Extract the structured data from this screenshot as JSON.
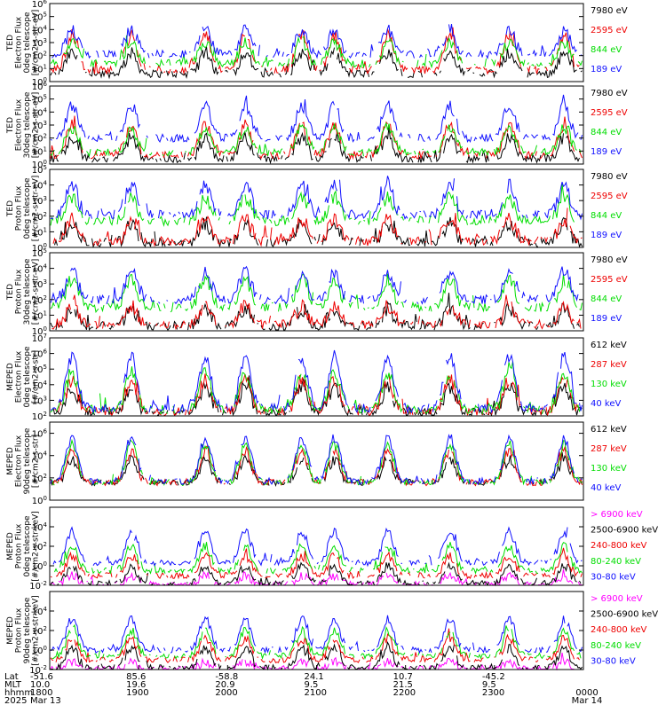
{
  "colors": {
    "blue": "#1010ff",
    "red": "#ee0000",
    "green": "#00dd00",
    "black": "#000000",
    "magenta": "#ff00ff"
  },
  "chart_data": {
    "type": "line",
    "x_axis": {
      "range_hhmm": [
        1800,
        2400
      ],
      "rows": [
        {
          "label": "Lat",
          "values": [
            "-51.6",
            "85.6",
            "-58.8",
            "24.1",
            "10.7",
            "-45.2",
            ""
          ]
        },
        {
          "label": "MLT",
          "values": [
            "10.0",
            "19.6",
            "20.9",
            "9.5",
            "21.5",
            "9.5",
            ""
          ]
        },
        {
          "label": "hhmm",
          "values": [
            "1800",
            "1900",
            "2000",
            "2100",
            "2200",
            "2300",
            "0000"
          ]
        },
        {
          "label": "2025",
          "values": [
            "Mar 13",
            "",
            "",
            "",
            "",
            "",
            "Mar 14"
          ]
        }
      ]
    },
    "panels": [
      {
        "ylabel": [
          "TED",
          "Electron Flux",
          "0deg telescope",
          "[#/cm2-s-str-eV]"
        ],
        "ylim_exp": [
          0,
          6
        ],
        "ticks": [
          "10^0",
          "10^1",
          "10^2",
          "10^3",
          "10^4",
          "10^5",
          "10^6"
        ],
        "series": [
          {
            "name": "7980 eV",
            "color": "black",
            "base": 0.6,
            "peak": 2.2
          },
          {
            "name": "2595 eV",
            "color": "red",
            "base": 0.9,
            "peak": 3.6
          },
          {
            "name": "844 eV",
            "color": "green",
            "base": 1.4,
            "peak": 3.0
          },
          {
            "name": "189 eV",
            "color": "blue",
            "base": 2.1,
            "peak": 4.0
          }
        ]
      },
      {
        "ylabel": [
          "TED",
          "Electron Flux",
          "30deg telescope",
          "[#/cm2-s-str-eV]"
        ],
        "ylim_exp": [
          0,
          6
        ],
        "ticks": [
          "10^0",
          "10^1",
          "10^2",
          "10^3",
          "10^4",
          "10^5",
          "10^6"
        ],
        "series": [
          {
            "name": "7980 eV",
            "color": "black",
            "base": 0.4,
            "peak": 2.0
          },
          {
            "name": "2595 eV",
            "color": "red",
            "base": 0.7,
            "peak": 3.0
          },
          {
            "name": "844 eV",
            "color": "green",
            "base": 0.9,
            "peak": 2.8
          },
          {
            "name": "189 eV",
            "color": "blue",
            "base": 2.0,
            "peak": 4.5
          }
        ]
      },
      {
        "ylabel": [
          "TED",
          "Proton Flux",
          "0deg telescope",
          "[#/cm2-s-str-eV]"
        ],
        "ylim_exp": [
          0,
          5
        ],
        "ticks": [
          "10^0",
          "10^1",
          "10^2",
          "10^3",
          "10^4",
          "10^5"
        ],
        "series": [
          {
            "name": "7980 eV",
            "color": "black",
            "base": 0.3,
            "peak": 1.5
          },
          {
            "name": "2595 eV",
            "color": "red",
            "base": 0.4,
            "peak": 1.8
          },
          {
            "name": "844 eV",
            "color": "green",
            "base": 1.7,
            "peak": 3.2
          },
          {
            "name": "189 eV",
            "color": "blue",
            "base": 2.1,
            "peak": 4.0
          }
        ]
      },
      {
        "ylabel": [
          "TED",
          "Proton Flux",
          "30deg telescope",
          "[#/cm2-s-str-eV]"
        ],
        "ylim_exp": [
          0,
          5
        ],
        "ticks": [
          "10^0",
          "10^1",
          "10^2",
          "10^3",
          "10^4",
          "10^5"
        ],
        "series": [
          {
            "name": "7980 eV",
            "color": "black",
            "base": 0.3,
            "peak": 1.4
          },
          {
            "name": "2595 eV",
            "color": "red",
            "base": 0.4,
            "peak": 1.6
          },
          {
            "name": "844 eV",
            "color": "green",
            "base": 1.5,
            "peak": 3.3
          },
          {
            "name": "189 eV",
            "color": "blue",
            "base": 2.0,
            "peak": 3.8
          }
        ]
      },
      {
        "ylabel": [
          "MEPED",
          "Electron Flux",
          "0deg telescope",
          "[#/cm2-s-str]"
        ],
        "ylim_exp": [
          2,
          7
        ],
        "ticks": [
          "10^2",
          "10^3",
          "10^4",
          "10^5",
          "10^6",
          "10^7"
        ],
        "series": [
          {
            "name": "612 keV",
            "color": "black",
            "base": 2.2,
            "peak": 3.8
          },
          {
            "name": "287 keV",
            "color": "red",
            "base": 2.3,
            "peak": 4.3
          },
          {
            "name": "130 keV",
            "color": "green",
            "base": 2.4,
            "peak": 4.8
          },
          {
            "name": "40 keV",
            "color": "blue",
            "base": 2.5,
            "peak": 5.8
          }
        ]
      },
      {
        "ylabel": [
          "MEPED",
          "Electron Flux",
          "90deg telescope",
          "[#/cm2-s-str]"
        ],
        "ylim_exp": [
          0,
          7
        ],
        "ticks": [
          "10^0",
          "10^2",
          "10^4",
          "10^6"
        ],
        "series": [
          {
            "name": "612 keV",
            "color": "black",
            "base": 1.6,
            "peak": 3.6
          },
          {
            "name": "287 keV",
            "color": "red",
            "base": 1.6,
            "peak": 4.4
          },
          {
            "name": "130 keV",
            "color": "green",
            "base": 1.6,
            "peak": 5.0
          },
          {
            "name": "40 keV",
            "color": "blue",
            "base": 1.7,
            "peak": 5.6
          }
        ]
      },
      {
        "ylabel": [
          "MEPED",
          "Proton Flux",
          "0deg telescope",
          "[#/cm2-s-str-keV]"
        ],
        "ylim_exp": [
          -2,
          6
        ],
        "ticks": [
          "10^-2",
          "10^0",
          "10^2",
          "10^4"
        ],
        "series": [
          {
            "name": "> 6900 keV",
            "color": "magenta",
            "base": -1.9,
            "peak": -1.0
          },
          {
            "name": "2500-6900 keV",
            "color": "black",
            "base": -1.8,
            "peak": 0.0
          },
          {
            "name": "240-800 keV",
            "color": "red",
            "base": -1.0,
            "peak": 1.0
          },
          {
            "name": "80-240 keV",
            "color": "green",
            "base": -0.5,
            "peak": 2.0
          },
          {
            "name": "30-80 keV",
            "color": "blue",
            "base": 0.3,
            "peak": 3.5
          }
        ]
      },
      {
        "ylabel": [
          "MEPED",
          "Proton Flux",
          "90deg telescope",
          "[#/cm2-s-str-keV]"
        ],
        "ylim_exp": [
          -2,
          6
        ],
        "ticks": [
          "10^-2",
          "10^0",
          "10^2",
          "10^4"
        ],
        "series": [
          {
            "name": "> 6900 keV",
            "color": "magenta",
            "base": -1.9,
            "peak": -1.2
          },
          {
            "name": "2500-6900 keV",
            "color": "black",
            "base": -1.8,
            "peak": 0.2
          },
          {
            "name": "240-800 keV",
            "color": "red",
            "base": -1.0,
            "peak": 1.2
          },
          {
            "name": "80-240 keV",
            "color": "green",
            "base": -0.6,
            "peak": 2.0
          },
          {
            "name": "30-80 keV",
            "color": "blue",
            "base": 0.0,
            "peak": 3.2
          }
        ]
      }
    ],
    "orbit_peaks_hhmm": [
      1815,
      1855,
      1945,
      2012,
      2050,
      2112,
      2148,
      2230,
      2310,
      2347
    ]
  }
}
